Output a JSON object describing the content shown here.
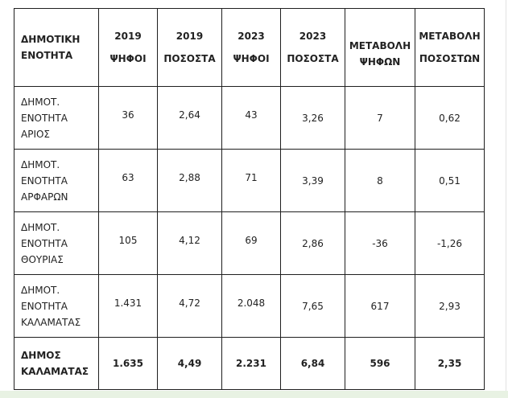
{
  "table": {
    "headers": [
      [
        "ΔΗΜΟΤΙΚΗ",
        "ΕΝΟΤΗΤΑ"
      ],
      [
        "2019",
        "ΨΗΦΟΙ"
      ],
      [
        "2019",
        "ΠΟΣΟΣΤΑ"
      ],
      [
        "2023",
        "ΨΗΦΟΙ"
      ],
      [
        "2023",
        "ΠΟΣΟΣΤΑ"
      ],
      [
        "ΜΕΤΑΒΟΛΗ",
        "ΨΗΦΩΝ"
      ],
      [
        "ΜΕΤΑΒΟΛΗ",
        "ΠΟΣΟΣΤΩΝ"
      ]
    ],
    "rows": [
      {
        "name": [
          "ΔΗΜΟΤ.",
          "ΕΝΟΤΗΤΑ",
          "ΑΡΙΟΣ"
        ],
        "votes_2019": "36",
        "pct_2019": "2,64",
        "votes_2023": "43",
        "pct_2023": "3,26",
        "votes_change": "7",
        "pct_change": "0,62"
      },
      {
        "name": [
          "ΔΗΜΟΤ.",
          "ΕΝΟΤΗΤΑ",
          "ΑΡΦΑΡΩΝ"
        ],
        "votes_2019": "63",
        "pct_2019": "2,88",
        "votes_2023": "71",
        "pct_2023": "3,39",
        "votes_change": "8",
        "pct_change": "0,51"
      },
      {
        "name": [
          "ΔΗΜΟΤ.",
          "ΕΝΟΤΗΤΑ",
          "ΘΟΥΡΙΑΣ"
        ],
        "votes_2019": "105",
        "pct_2019": "4,12",
        "votes_2023": "69",
        "pct_2023": "2,86",
        "votes_change": "-36",
        "pct_change": "-1,26"
      },
      {
        "name": [
          "ΔΗΜΟΤ.",
          "ΕΝΟΤΗΤΑ",
          "ΚΑΛΑΜΑΤΑΣ"
        ],
        "votes_2019": "1.431",
        "pct_2019": "4,72",
        "votes_2023": "2.048",
        "pct_2023": "7,65",
        "votes_change": "617",
        "pct_change": "2,93"
      }
    ],
    "total": {
      "name": [
        "ΔΗΜΟΣ",
        "ΚΑΛΑΜΑΤΑΣ"
      ],
      "votes_2019": "1.635",
      "pct_2019": "4,49",
      "votes_2023": "2.231",
      "pct_2023": "6,84",
      "votes_change": "596",
      "pct_change": "2,35"
    }
  }
}
